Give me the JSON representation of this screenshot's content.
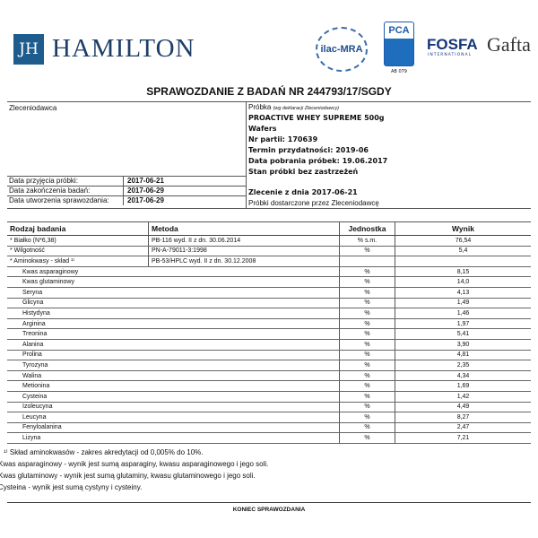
{
  "header": {
    "logo_initials": "JH",
    "company": "HAMILTON",
    "logos": {
      "ilac": "ilac-MRA",
      "pca": "PCA",
      "pca_code": "AB 079",
      "fosfa": "FOSFA",
      "fosfa_sub": "INTERNATIONAL",
      "gafta": "Gafta"
    }
  },
  "title": "SPRAWOZDANIE Z BADAŃ NR 244793/17/SGDY",
  "info": {
    "client_label": "Zleceniodawca",
    "dates": [
      {
        "label": "Data przyjęcia próbki:",
        "value": "2017-06-21"
      },
      {
        "label": "Data zakończenia badań:",
        "value": "2017-06-29"
      },
      {
        "label": "Data utworzenia sprawozdania:",
        "value": "2017-06-29"
      }
    ],
    "sample_label": "Próbka",
    "sample_note": "(wg deklaracji Zleceniodawcy)",
    "sample_lines": [
      "PROACTIVE WHEY SUPREME 500g",
      "Wafers",
      "Nr partii: 170639",
      "Termin przydatności: 2019-06",
      "Data pobrania próbek: 19.06.2017",
      "Stan próbki bez zastrzeżeń"
    ],
    "order": "Zlecenie z dnia 2017-06-21",
    "delivered": "Próbki dostarczone przez Zleceniodawcę"
  },
  "results": {
    "headers": [
      "Rodzaj badania",
      "Metoda",
      "Jednostka",
      "Wynik"
    ],
    "main": [
      {
        "name": "* Białko (N*6,38)",
        "method": "PB-116 wyd. II z dn. 30.06.2014",
        "unit": "% s.m.",
        "value": "76,54"
      },
      {
        "name": "* Wilgotność",
        "method": "PN-A-79011-3:1998",
        "unit": "%",
        "value": "5,4"
      },
      {
        "name": "* Aminokwasy - skład ¹⁾",
        "method": "PB-53/HPLC wyd. II z dn. 30.12.2008",
        "unit": "",
        "value": ""
      }
    ],
    "amino": [
      {
        "name": "Kwas asparaginowy",
        "unit": "%",
        "value": "8,15"
      },
      {
        "name": "Kwas glutaminowy",
        "unit": "%",
        "value": "14,0"
      },
      {
        "name": "Seryna",
        "unit": "%",
        "value": "4,13"
      },
      {
        "name": "Glicyna",
        "unit": "%",
        "value": "1,49"
      },
      {
        "name": "Histydyna",
        "unit": "%",
        "value": "1,46"
      },
      {
        "name": "Arginina",
        "unit": "%",
        "value": "1,97"
      },
      {
        "name": "Treonina",
        "unit": "%",
        "value": "5,41"
      },
      {
        "name": "Alanina",
        "unit": "%",
        "value": "3,90"
      },
      {
        "name": "Prolina",
        "unit": "%",
        "value": "4,81"
      },
      {
        "name": "Tyrozyna",
        "unit": "%",
        "value": "2,35"
      },
      {
        "name": "Walina",
        "unit": "%",
        "value": "4,34"
      },
      {
        "name": "Metionina",
        "unit": "%",
        "value": "1,69"
      },
      {
        "name": "Cysteina",
        "unit": "%",
        "value": "1,42"
      },
      {
        "name": "Izoleucyna",
        "unit": "%",
        "value": "4,49"
      },
      {
        "name": "Leucyna",
        "unit": "%",
        "value": "8,27"
      },
      {
        "name": "Fenyloalanina",
        "unit": "%",
        "value": "2,47"
      },
      {
        "name": "Lizyna",
        "unit": "%",
        "value": "7,21"
      }
    ]
  },
  "footnotes": [
    "¹⁾ Skład aminokwasów - zakres akredytacji od 0,005% do 10%.",
    "Kwas asparaginowy - wynik jest sumą asparaginy, kwasu asparaginowego i jego soli.",
    "Kwas glutaminowy - wynik jest sumą glutaminy, kwasu glutaminowego i jego soli.",
    "Cysteina - wynik jest sumą cystyny i cysteiny."
  ],
  "end": "KONIEC SPRAWOZDANIA"
}
